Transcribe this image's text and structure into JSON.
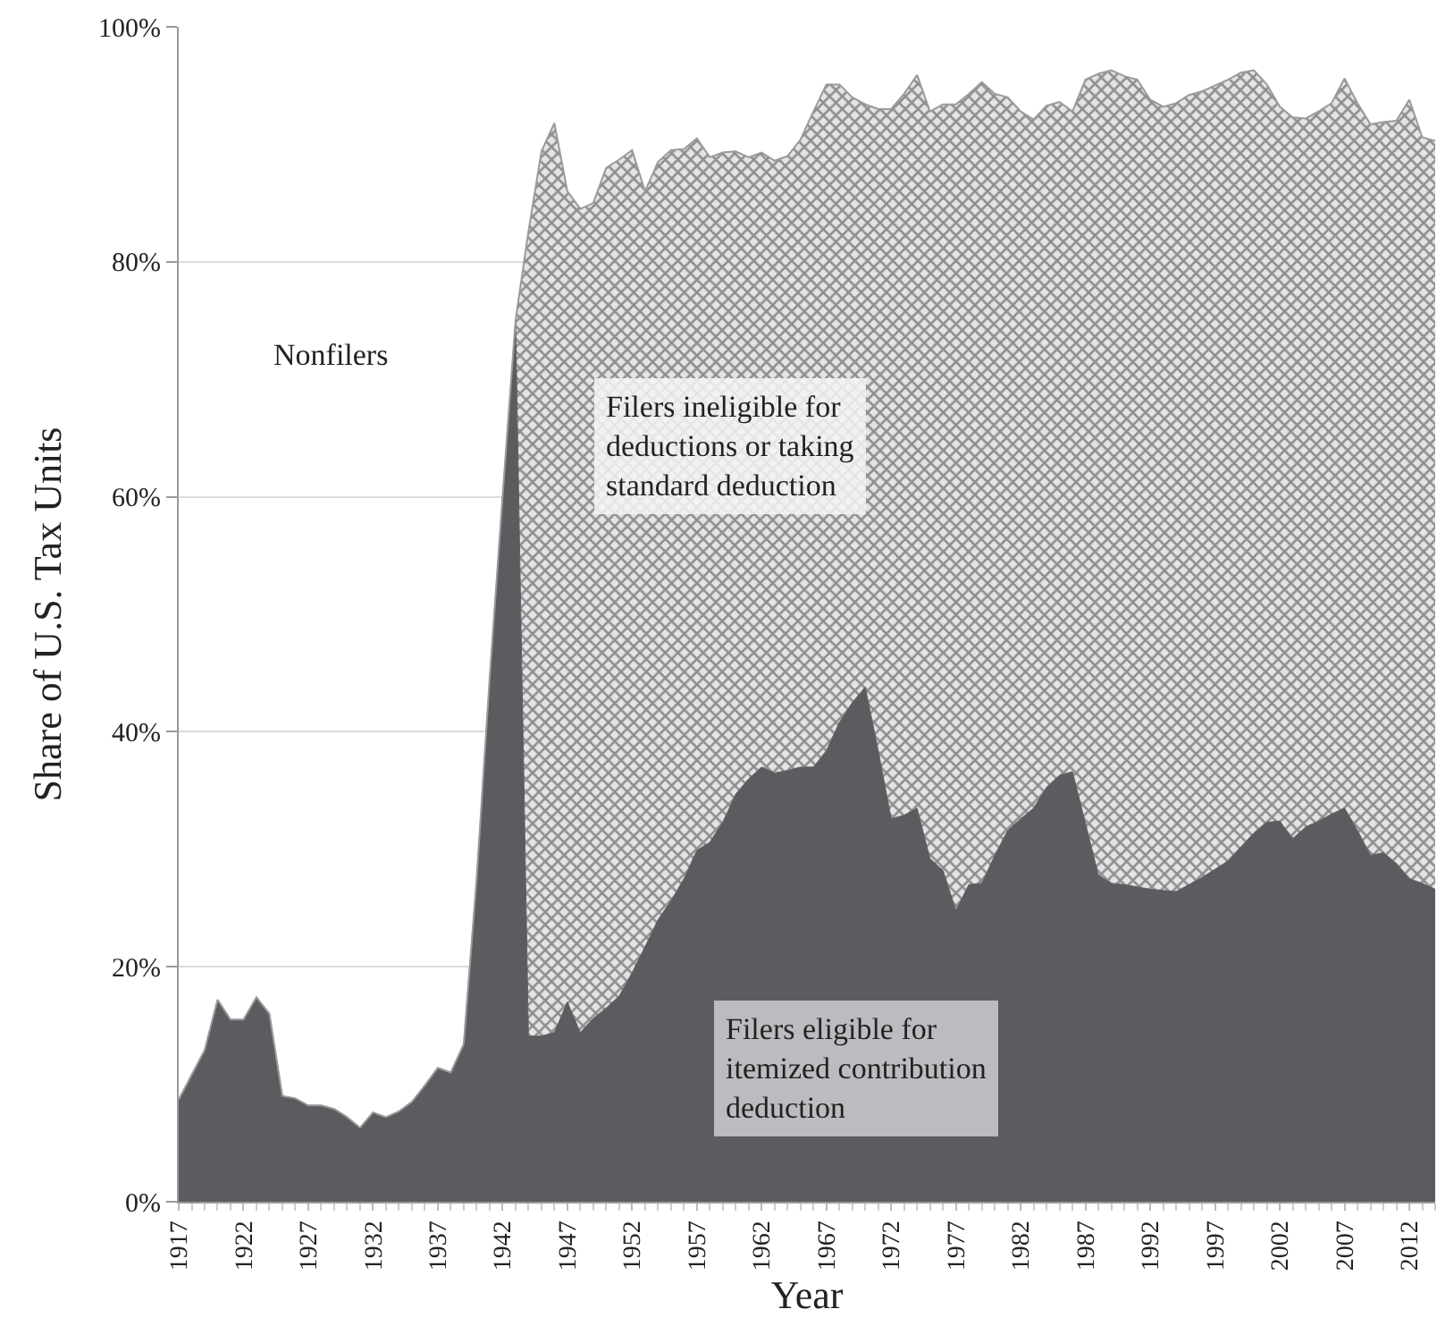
{
  "chart_data": {
    "type": "area",
    "stacked": true,
    "xlabel": "Year",
    "ylabel": "Share of U.S. Tax Units",
    "x": [
      1917,
      1918,
      1919,
      1920,
      1921,
      1922,
      1923,
      1924,
      1925,
      1926,
      1927,
      1928,
      1929,
      1930,
      1931,
      1932,
      1933,
      1934,
      1935,
      1936,
      1937,
      1938,
      1939,
      1940,
      1941,
      1942,
      1943,
      1944,
      1945,
      1946,
      1947,
      1948,
      1949,
      1950,
      1951,
      1952,
      1953,
      1954,
      1955,
      1956,
      1957,
      1958,
      1959,
      1960,
      1961,
      1962,
      1963,
      1964,
      1965,
      1966,
      1967,
      1968,
      1969,
      1970,
      1971,
      1972,
      1973,
      1974,
      1975,
      1976,
      1977,
      1978,
      1979,
      1980,
      1981,
      1982,
      1983,
      1984,
      1985,
      1986,
      1987,
      1988,
      1989,
      1990,
      1991,
      1992,
      1993,
      1994,
      1995,
      1996,
      1997,
      1998,
      1999,
      2000,
      2001,
      2002,
      2003,
      2004,
      2005,
      2006,
      2007,
      2008,
      2009,
      2010,
      2011,
      2012,
      2013,
      2014
    ],
    "series": [
      {
        "name": "Filers eligible for itemized contribution deduction",
        "color": "#5b5c5f",
        "values": [
          8.7,
          10.8,
          12.9,
          17.2,
          15.5,
          15.5,
          17.4,
          16.0,
          9.0,
          8.8,
          8.2,
          8.2,
          7.9,
          7.2,
          6.3,
          7.6,
          7.2,
          7.7,
          8.5,
          9.9,
          11.4,
          11.0,
          13.4,
          27.5,
          44.5,
          60,
          75,
          14.1,
          14.1,
          14.4,
          17,
          14.4,
          15.6,
          16.5,
          17.5,
          19.5,
          21.7,
          24,
          25.6,
          27.5,
          29.9,
          30.6,
          32.3,
          34.7,
          36,
          37,
          36.5,
          36.7,
          37,
          37,
          38.4,
          40.8,
          42.5,
          43.8,
          38.4,
          32.6,
          32.9,
          33.5,
          29.2,
          28.2,
          24.8,
          27,
          27.1,
          29.5,
          31.6,
          32.6,
          33.5,
          35.3,
          36.3,
          36.6,
          32.2,
          27.8,
          27.1,
          27,
          26.8,
          26.6,
          26.5,
          26.4,
          27,
          27.6,
          28.3,
          29,
          30.2,
          31.4,
          32.3,
          32.4,
          30.9,
          31.9,
          32.4,
          33,
          33.5,
          31.6,
          29.5,
          29.7,
          28.8,
          27.5,
          27.1,
          26.6
        ]
      },
      {
        "name": "Filers ineligible for deductions or taking standard deduction",
        "color": "#8e8e8e",
        "values": [
          0,
          0,
          0,
          0,
          0,
          0,
          0,
          0,
          0,
          0,
          0,
          0,
          0,
          0,
          0,
          0,
          0,
          0,
          0,
          0,
          0,
          0,
          0,
          0,
          0,
          0,
          0,
          68.5,
          75.3,
          77.4,
          69,
          70.1,
          69.4,
          71.5,
          71.2,
          70,
          64.3,
          64.5,
          63.9,
          62.1,
          60.6,
          58.3,
          57,
          54.7,
          52.9,
          52.3,
          52.1,
          52.3,
          53.4,
          55.8,
          56.7,
          54.3,
          51.5,
          49.6,
          54.6,
          60.4,
          61.4,
          62.4,
          63.6,
          65.2,
          68.6,
          67.3,
          68.2,
          64.8,
          62.4,
          60.2,
          58.6,
          58,
          57.3,
          56.2,
          63.3,
          68.2,
          69.2,
          68.8,
          68.7,
          67.2,
          66.7,
          67.1,
          67.2,
          66.9,
          66.7,
          66.5,
          65.9,
          64.9,
          62.8,
          60.8,
          61.4,
          60.3,
          60.4,
          60.5,
          62.1,
          61.9,
          62.2,
          62.2,
          63.2,
          66.3,
          63.5,
          63.7
        ]
      }
    ],
    "xlim": [
      1917,
      2014
    ],
    "xticks": [
      1917,
      1922,
      1927,
      1932,
      1937,
      1942,
      1947,
      1952,
      1957,
      1962,
      1967,
      1972,
      1977,
      1982,
      1987,
      1992,
      1997,
      2002,
      2007,
      2012
    ],
    "ylim": [
      0,
      100
    ],
    "yticks": [
      {
        "value": 0,
        "label": "0%"
      },
      {
        "value": 20,
        "label": "20%"
      },
      {
        "value": 40,
        "label": "40%"
      },
      {
        "value": 60,
        "label": "60%"
      },
      {
        "value": 80,
        "label": "80%"
      },
      {
        "value": 100,
        "label": "100%"
      }
    ],
    "grid": "y",
    "legend": false,
    "annotations": [
      "Nonfilers"
    ]
  }
}
